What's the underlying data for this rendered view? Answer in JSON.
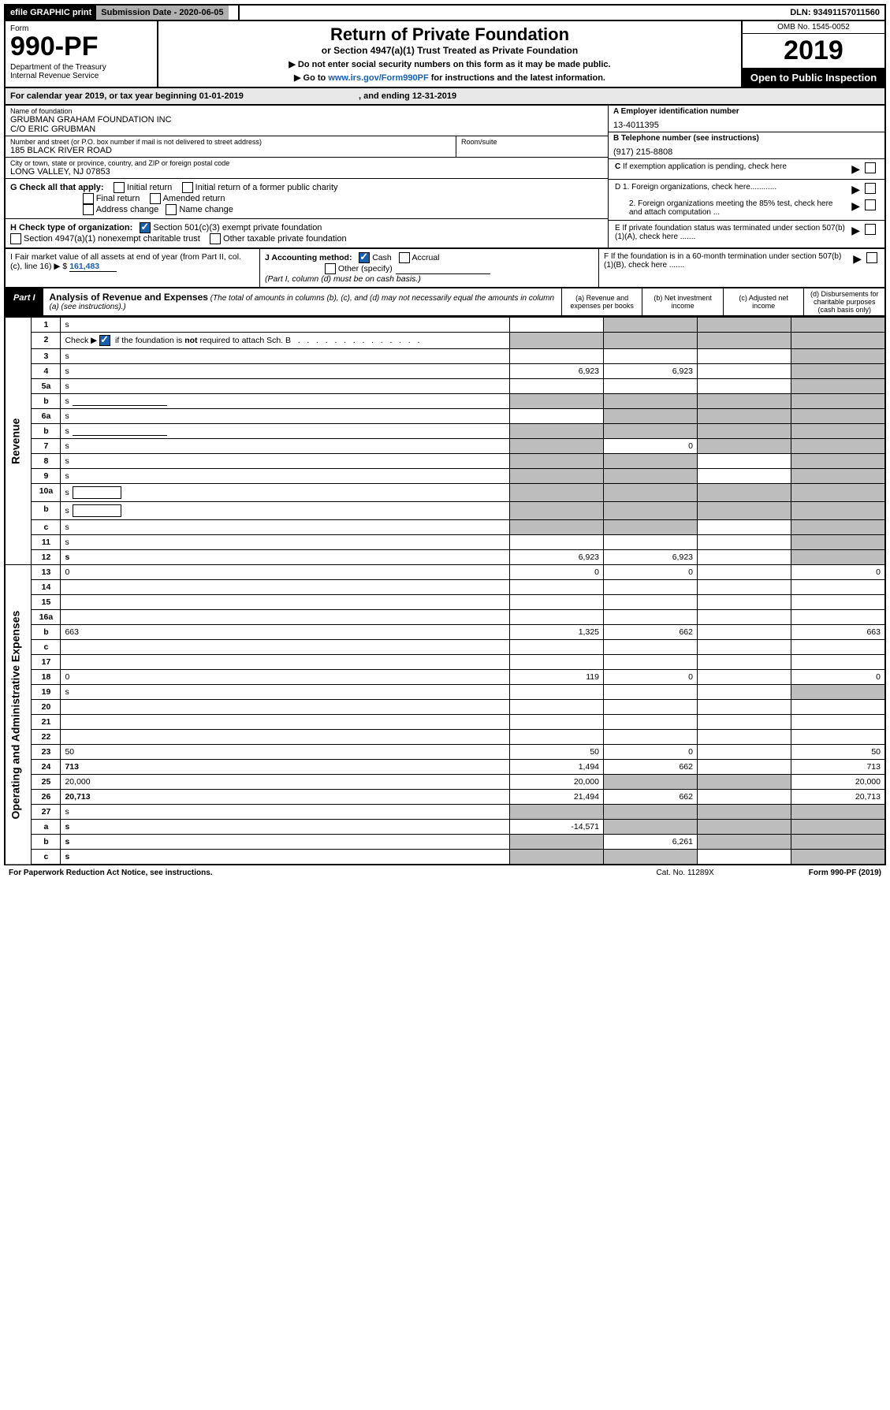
{
  "topbar": {
    "efile": "efile GRAPHIC print",
    "sub_label": "Submission Date - 2020-06-05",
    "dln": "DLN: 93491157011560"
  },
  "header": {
    "form_label": "Form",
    "form_no": "990-PF",
    "dept": "Department of the Treasury\nInternal Revenue Service",
    "title": "Return of Private Foundation",
    "subtitle": "or Section 4947(a)(1) Trust Treated as Private Foundation",
    "instr1": "▶ Do not enter social security numbers on this form as it may be made public.",
    "instr2_pre": "▶ Go to ",
    "instr2_link": "www.irs.gov/Form990PF",
    "instr2_post": " for instructions and the latest information.",
    "omb": "OMB No. 1545-0052",
    "year": "2019",
    "open": "Open to Public Inspection"
  },
  "cal": "For calendar year 2019, or tax year beginning 01-01-2019",
  "cal_end": ", and ending 12-31-2019",
  "name_label": "Name of foundation",
  "name_val": "GRUBMAN GRAHAM FOUNDATION INC\nC/O ERIC GRUBMAN",
  "addr_label": "Number and street (or P.O. box number if mail is not delivered to street address)",
  "addr_val": "185 BLACK RIVER ROAD",
  "room_label": "Room/suite",
  "city_label": "City or town, state or province, country, and ZIP or foreign postal code",
  "city_val": "LONG VALLEY, NJ  07853",
  "a_label": "A Employer identification number",
  "a_val": "13-4011395",
  "b_label": "B Telephone number (see instructions)",
  "b_val": "(917) 215-8808",
  "c_label": "C If exemption application is pending, check here",
  "d1_label": "D 1. Foreign organizations, check here............",
  "d2_label": "2. Foreign organizations meeting the 85% test, check here and attach computation ...",
  "e_label": "E  If private foundation status was terminated under section 507(b)(1)(A), check here .......",
  "g_label": "G Check all that apply:",
  "g_opts": {
    "initial": "Initial return",
    "initial_pub": "Initial return of a former public charity",
    "final": "Final return",
    "amended": "Amended return",
    "addr": "Address change",
    "name": "Name change"
  },
  "h_label": "H Check type of organization:",
  "h_opts": {
    "s501": "Section 501(c)(3) exempt private foundation",
    "s4947": "Section 4947(a)(1) nonexempt charitable trust",
    "other_tax": "Other taxable private foundation"
  },
  "i_label": "I Fair market value of all assets at end of year (from Part II, col. (c), line 16) ▶ $",
  "i_val": "161,483",
  "j_label": "J Accounting method:",
  "j_cash": "Cash",
  "j_accrual": "Accrual",
  "j_other": "Other (specify)",
  "j_note": "(Part I, column (d) must be on cash basis.)",
  "f_label": "F  If the foundation is in a 60-month termination under section 507(b)(1)(B), check here .......",
  "part1": {
    "label": "Part I",
    "title": "Analysis of Revenue and Expenses",
    "note": "(The total of amounts in columns (b), (c), and (d) may not necessarily equal the amounts in column (a) (see instructions).)",
    "col_a": "(a)   Revenue and expenses per books",
    "col_b": "(b)  Net investment income",
    "col_c": "(c)  Adjusted net income",
    "col_d": "(d)  Disbursements for charitable purposes (cash basis only)"
  },
  "vert_rev": "Revenue",
  "vert_exp": "Operating and Administrative Expenses",
  "rows": [
    {
      "n": "1",
      "d": "s",
      "a": "",
      "b": "s",
      "c": "s"
    },
    {
      "n": "2",
      "d": "s",
      "a": "s",
      "b": "s",
      "c": "s",
      "bold_parts": [
        "not"
      ]
    },
    {
      "n": "3",
      "d": "s",
      "a": "",
      "b": "",
      "c": ""
    },
    {
      "n": "4",
      "d": "s",
      "a": "6,923",
      "b": "6,923",
      "c": ""
    },
    {
      "n": "5a",
      "d": "s",
      "a": "",
      "b": "",
      "c": ""
    },
    {
      "n": "b",
      "d": "s",
      "a": "s",
      "b": "s",
      "c": "s",
      "inline_line": true
    },
    {
      "n": "6a",
      "d": "s",
      "a": "",
      "b": "s",
      "c": "s"
    },
    {
      "n": "b",
      "d": "s",
      "a": "s",
      "b": "s",
      "c": "s",
      "inline_line": true
    },
    {
      "n": "7",
      "d": "s",
      "a": "s",
      "b": "0",
      "c": "s"
    },
    {
      "n": "8",
      "d": "s",
      "a": "s",
      "b": "s",
      "c": ""
    },
    {
      "n": "9",
      "d": "s",
      "a": "s",
      "b": "s",
      "c": ""
    },
    {
      "n": "10a",
      "d": "s",
      "a": "s",
      "b": "s",
      "c": "s",
      "inline_box": true
    },
    {
      "n": "b",
      "d": "s",
      "a": "s",
      "b": "s",
      "c": "s",
      "inline_box": true
    },
    {
      "n": "c",
      "d": "s",
      "a": "s",
      "b": "s",
      "c": ""
    },
    {
      "n": "11",
      "d": "s",
      "a": "",
      "b": "",
      "c": ""
    },
    {
      "n": "12",
      "d": "s",
      "a": "6,923",
      "b": "6,923",
      "c": "",
      "bold": true
    },
    {
      "n": "13",
      "d": "0",
      "a": "0",
      "b": "0",
      "c": ""
    },
    {
      "n": "14",
      "d": "",
      "a": "",
      "b": "",
      "c": ""
    },
    {
      "n": "15",
      "d": "",
      "a": "",
      "b": "",
      "c": ""
    },
    {
      "n": "16a",
      "d": "",
      "a": "",
      "b": "",
      "c": ""
    },
    {
      "n": "b",
      "d": "663",
      "a": "1,325",
      "b": "662",
      "c": ""
    },
    {
      "n": "c",
      "d": "",
      "a": "",
      "b": "",
      "c": ""
    },
    {
      "n": "17",
      "d": "",
      "a": "",
      "b": "",
      "c": ""
    },
    {
      "n": "18",
      "d": "0",
      "a": "119",
      "b": "0",
      "c": ""
    },
    {
      "n": "19",
      "d": "s",
      "a": "",
      "b": "",
      "c": ""
    },
    {
      "n": "20",
      "d": "",
      "a": "",
      "b": "",
      "c": ""
    },
    {
      "n": "21",
      "d": "",
      "a": "",
      "b": "",
      "c": ""
    },
    {
      "n": "22",
      "d": "",
      "a": "",
      "b": "",
      "c": ""
    },
    {
      "n": "23",
      "d": "50",
      "a": "50",
      "b": "0",
      "c": ""
    },
    {
      "n": "24",
      "d": "713",
      "a": "1,494",
      "b": "662",
      "c": "",
      "bold": true
    },
    {
      "n": "25",
      "d": "20,000",
      "a": "20,000",
      "b": "s",
      "c": "s"
    },
    {
      "n": "26",
      "d": "20,713",
      "a": "21,494",
      "b": "662",
      "c": "",
      "bold": true
    },
    {
      "n": "27",
      "d": "s",
      "a": "s",
      "b": "s",
      "c": "s"
    },
    {
      "n": "a",
      "d": "s",
      "a": "-14,571",
      "b": "s",
      "c": "s",
      "bold": true
    },
    {
      "n": "b",
      "d": "s",
      "a": "s",
      "b": "6,261",
      "c": "s",
      "bold": true
    },
    {
      "n": "c",
      "d": "s",
      "a": "s",
      "b": "s",
      "c": "",
      "bold": true
    }
  ],
  "footer": {
    "pra": "For Paperwork Reduction Act Notice, see instructions.",
    "cat": "Cat. No. 11289X",
    "form": "Form 990-PF (2019)"
  }
}
